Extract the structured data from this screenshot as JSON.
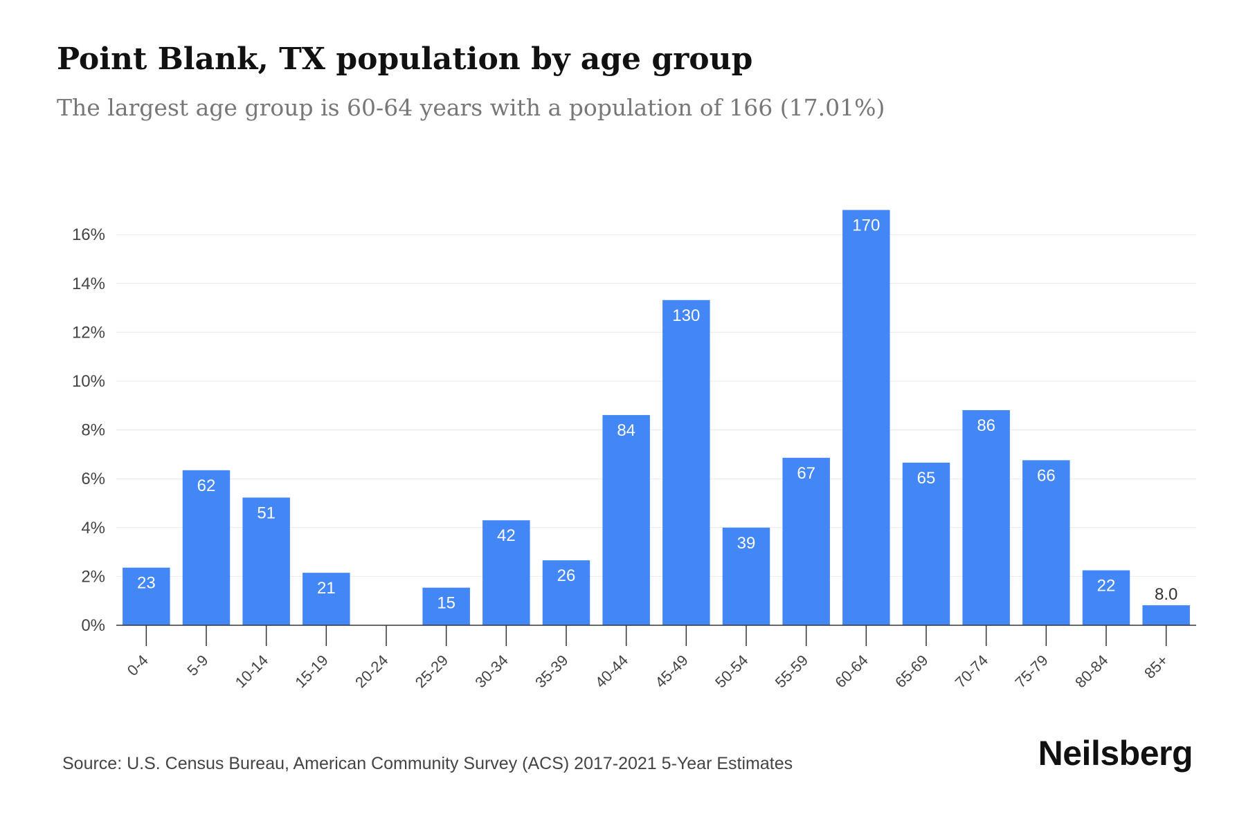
{
  "header": {
    "title": "Point Blank, TX population by age group",
    "subtitle": "The largest age group is 60-64 years with a population of 166 (17.01%)"
  },
  "footer": {
    "source": "Source: U.S. Census Bureau, American Community Survey (ACS) 2017-2021 5-Year Estimates",
    "brand": "Neilsberg"
  },
  "colors": {
    "bar": "#4287f5",
    "grid": "#e9e9e9",
    "axis": "#333333",
    "label_inside": "#ffffff",
    "label_outside": "#333333"
  },
  "chart_data": {
    "type": "bar",
    "categories": [
      "0-4",
      "5-9",
      "10-14",
      "15-19",
      "20-24",
      "25-29",
      "30-34",
      "35-39",
      "40-44",
      "45-49",
      "50-54",
      "55-59",
      "60-64",
      "65-69",
      "70-74",
      "75-79",
      "80-84",
      "85+"
    ],
    "values": [
      2.36,
      6.35,
      5.23,
      2.15,
      0,
      1.54,
      4.3,
      2.66,
      8.61,
      13.32,
      4.0,
      6.86,
      17.01,
      6.66,
      8.81,
      6.76,
      2.25,
      0.82
    ],
    "data_labels": [
      "23",
      "62",
      "51",
      "21",
      "",
      "15",
      "42",
      "26",
      "84",
      "130",
      "39",
      "67",
      "170",
      "65",
      "86",
      "66",
      "22",
      "8.0"
    ],
    "y_ticks": [
      "0%",
      "2%",
      "4%",
      "6%",
      "8%",
      "10%",
      "12%",
      "14%",
      "16%"
    ],
    "y_tick_values": [
      0,
      2,
      4,
      6,
      8,
      10,
      12,
      14,
      16
    ],
    "ylim": [
      0,
      17.6
    ],
    "grid": true,
    "legend": "none"
  }
}
